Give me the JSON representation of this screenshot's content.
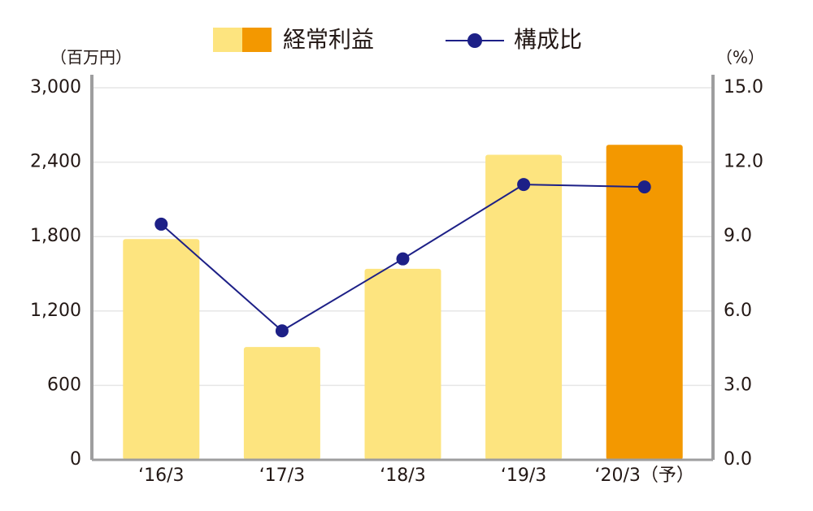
{
  "chart_data": {
    "type": "bar",
    "y_label": "（百万円）",
    "y2_label": "（%）",
    "categories": [
      "‘16/3",
      "‘17/3",
      "‘18/3",
      "‘19/3",
      "‘20/3（予）"
    ],
    "series": [
      {
        "name": "経常利益",
        "type": "bar",
        "colors": [
          "#fde47f",
          "#fde47f",
          "#fde47f",
          "#fde47f",
          "#f39800"
        ],
        "values": [
          1780,
          910,
          1540,
          2460,
          2540
        ]
      },
      {
        "name": "構成比",
        "type": "line",
        "axis": "y2",
        "color": "#1d2087",
        "values": [
          9.5,
          5.2,
          8.1,
          11.1,
          11.0
        ]
      }
    ],
    "ylim": [
      0,
      3000
    ],
    "yticks": [
      0,
      600,
      {
        "value": 1200,
        "label": "1,200"
      },
      {
        "value": 1800,
        "label": "1,800"
      },
      {
        "value": 2400,
        "label": "2,400"
      },
      {
        "value": 3000,
        "label": "3,000"
      }
    ],
    "y2lim": [
      0,
      15
    ],
    "y2ticks": [
      {
        "value": 0,
        "label": "0.0"
      },
      {
        "value": 3,
        "label": "3.0"
      },
      {
        "value": 6,
        "label": "6.0"
      },
      {
        "value": 9,
        "label": "9.0"
      },
      {
        "value": 12,
        "label": "12.0"
      },
      {
        "value": 15,
        "label": "15.0"
      }
    ],
    "grid": true
  }
}
